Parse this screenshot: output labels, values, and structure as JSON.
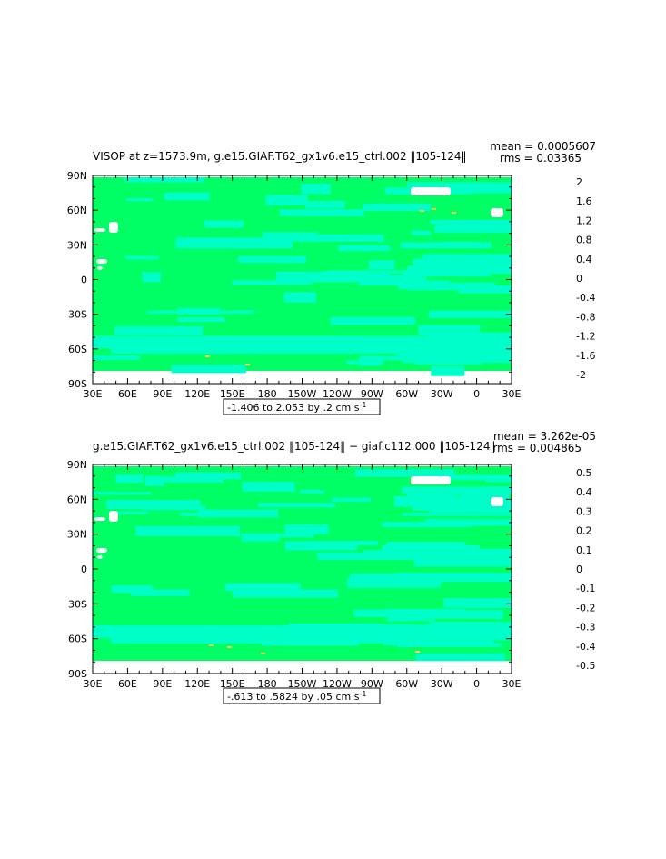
{
  "chart_data": [
    {
      "type": "heatmap",
      "title": "VISOP at z=1573.9m, g.e15.GIAF.T62_gx1v6.e15_ctrl.002 ‖105-124‖",
      "mean_label": "mean = 0.0005607",
      "rms_label": "rms = 0.03365",
      "range_label": "-1.406 to 2.053 by .2 cm s",
      "range_unit_exp": "-1",
      "x_ticks": [
        "30E",
        "60E",
        "90E",
        "120E",
        "150E",
        "180",
        "150W",
        "120W",
        "90W",
        "60W",
        "30W",
        "0",
        "30E"
      ],
      "y_ticks": [
        "90N",
        "60N",
        "30N",
        "0",
        "30S",
        "60S",
        "90S"
      ],
      "colorbar": {
        "labels": [
          "2",
          "1.6",
          "1.2",
          "0.8",
          "0.4",
          "0",
          "-0.4",
          "-0.8",
          "-1.2",
          "-1.6",
          "-2"
        ],
        "colors": [
          "#c80000",
          "#e21a1a",
          "#ff3c1e",
          "#ff7828",
          "#ffa03c",
          "#ffc850",
          "#ffff00",
          "#50f000",
          "#00ff64",
          "#00ffc8",
          "#00e6ff",
          "#00b4ff",
          "#0078ff",
          "#0000e6",
          "#8c00dc",
          "#e600e6",
          "#c8c8c8",
          "#646464"
        ]
      },
      "dominant_field": {
        "positive": "#00ff64",
        "negative": "#00ffc8",
        "land": "#ffffff"
      }
    },
    {
      "type": "heatmap",
      "title": "g.e15.GIAF.T62_gx1v6.e15_ctrl.002 ‖105-124‖ − giaf.c112.000 ‖105-124‖",
      "mean_label": "mean = 3.262e-05",
      "rms_label": "rms = 0.004865",
      "range_label": "-.613 to .5824 by .05 cm s",
      "range_unit_exp": "-1",
      "x_ticks": [
        "30E",
        "60E",
        "90E",
        "120E",
        "150E",
        "180",
        "150W",
        "120W",
        "90W",
        "60W",
        "30W",
        "0",
        "30E"
      ],
      "y_ticks": [
        "90N",
        "60N",
        "30N",
        "0",
        "30S",
        "60S",
        "90S"
      ],
      "colorbar": {
        "labels": [
          "0.5",
          "0.4",
          "0.3",
          "0.2",
          "0.1",
          "0",
          "-0.1",
          "-0.2",
          "-0.3",
          "-0.4",
          "-0.5"
        ],
        "colors": [
          "#c80000",
          "#e21a1a",
          "#ff3c1e",
          "#ff7828",
          "#ffa03c",
          "#ffc850",
          "#ffff00",
          "#50f000",
          "#00ff64",
          "#00ffc8",
          "#00e6ff",
          "#00b4ff",
          "#0078ff",
          "#0000e6",
          "#8c00dc",
          "#e600e6",
          "#c8c8c8",
          "#646464"
        ]
      },
      "dominant_field": {
        "positive": "#00ff64",
        "negative": "#00ffc8",
        "land": "#ffffff"
      }
    }
  ]
}
